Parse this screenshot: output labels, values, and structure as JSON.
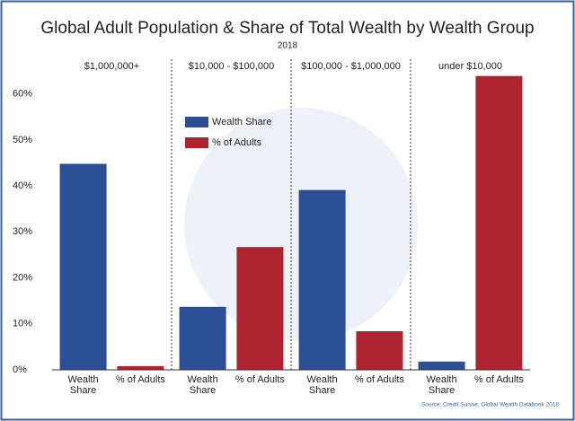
{
  "chart_data": {
    "type": "bar",
    "title": "Global Adult Population & Share of Total Wealth by Wealth Group",
    "subtitle": "2018",
    "categories": [
      "$1,000,000+",
      "$10,000 - $100,000",
      "$100,000 - $1,000,000",
      "under $10,000"
    ],
    "series": [
      {
        "name": "Wealth Share",
        "color": "#2b4f95",
        "values": [
          44.8,
          13.7,
          39.1,
          1.8
        ]
      },
      {
        "name": "% of Adults",
        "color": "#ae2330",
        "values": [
          0.8,
          26.7,
          8.4,
          63.9
        ]
      }
    ],
    "ylim": [
      0,
      65
    ],
    "yticks": [
      {
        "value": 0,
        "label": "0%"
      },
      {
        "value": 10,
        "label": "10%"
      },
      {
        "value": 20,
        "label": "20%"
      },
      {
        "value": 30,
        "label": "30%"
      },
      {
        "value": 40,
        "label": "40%"
      },
      {
        "value": 50,
        "label": "50%"
      },
      {
        "value": 60,
        "label": "60%"
      }
    ],
    "legend": "upper left",
    "source": "Source: Credit Suisse, Global Wealth Databook 2018"
  }
}
